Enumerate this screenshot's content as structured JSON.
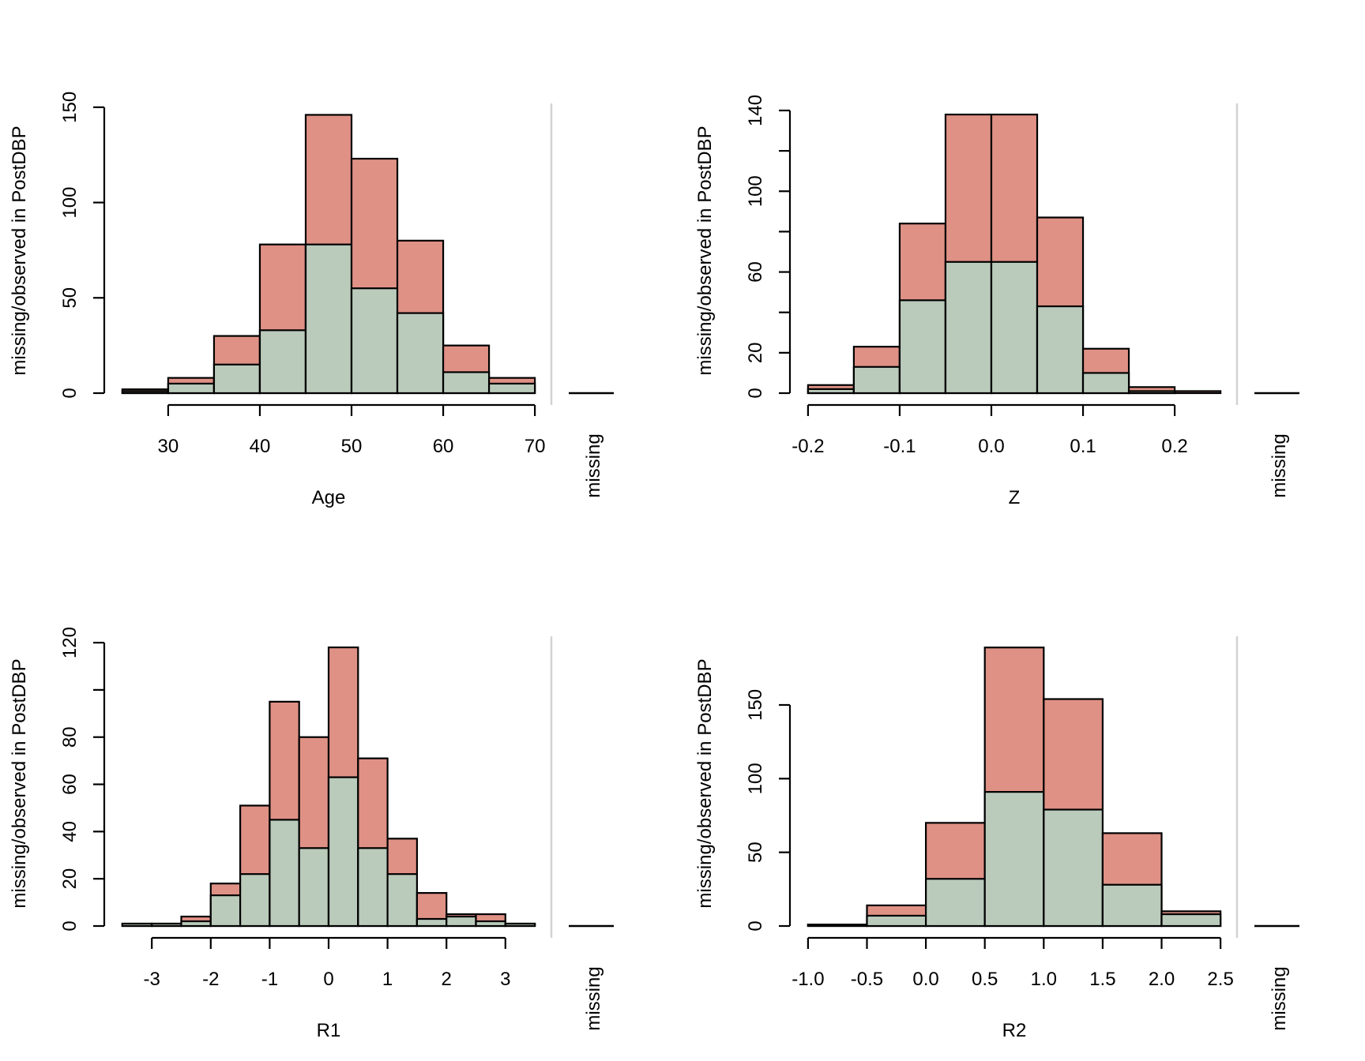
{
  "colors": {
    "observed": "#BACABB",
    "missing": "#DF9185",
    "separator": "#D3D3D3",
    "stroke": "#000000"
  },
  "chart_data": [
    {
      "type": "bar",
      "stacked": true,
      "title": "",
      "xlabel": "Age",
      "ylabel": "missing/observed in PostDBP",
      "bin_edges": [
        25,
        30,
        35,
        40,
        45,
        50,
        55,
        60,
        65,
        70
      ],
      "series": [
        {
          "name": "observed",
          "values": [
            1,
            5,
            15,
            33,
            78,
            55,
            42,
            11,
            5
          ]
        },
        {
          "name": "missing",
          "values": [
            1,
            3,
            15,
            45,
            68,
            68,
            38,
            14,
            3
          ]
        }
      ],
      "xticks": [
        30,
        40,
        50,
        60,
        70
      ],
      "xtick_labels": [
        "30",
        "40",
        "50",
        "60",
        "70"
      ],
      "yticks": [
        0,
        50,
        100,
        150
      ],
      "ytick_labels": [
        "0",
        "50",
        "100",
        "150"
      ],
      "ylim": [
        0,
        152
      ],
      "missing_label": "missing",
      "missing_count": 0
    },
    {
      "type": "bar",
      "stacked": true,
      "title": "",
      "xlabel": "Z",
      "ylabel": "missing/observed in PostDBP",
      "bin_edges": [
        -0.2,
        -0.15,
        -0.1,
        -0.05,
        0,
        0.05,
        0.1,
        0.15,
        0.2,
        0.25
      ],
      "series": [
        {
          "name": "observed",
          "values": [
            2,
            13,
            46,
            65,
            65,
            43,
            10,
            1,
            0
          ]
        },
        {
          "name": "missing",
          "values": [
            2,
            10,
            38,
            73,
            73,
            44,
            12,
            2,
            1
          ]
        }
      ],
      "xticks": [
        -0.2,
        -0.1,
        0,
        0.1,
        0.2
      ],
      "xtick_labels": [
        "-0.2",
        "-0.1",
        "0.0",
        "0.1",
        "0.2"
      ],
      "yticks": [
        0,
        20,
        40,
        60,
        80,
        100,
        120,
        140
      ],
      "ytick_labels": [
        "0",
        "20",
        "",
        "60",
        "",
        "100",
        "",
        "140"
      ],
      "ylim": [
        0,
        143.5
      ],
      "missing_label": "missing",
      "missing_count": 0
    },
    {
      "type": "bar",
      "stacked": true,
      "title": "",
      "xlabel": "R1",
      "ylabel": "missing/observed in PostDBP",
      "bin_edges": [
        -3.5,
        -3,
        -2.5,
        -2,
        -1.5,
        -1,
        -0.5,
        0,
        0.5,
        1,
        1.5,
        2,
        2.5,
        3,
        3.5
      ],
      "series": [
        {
          "name": "observed",
          "values": [
            1,
            1,
            2,
            13,
            22,
            45,
            33,
            63,
            33,
            22,
            3,
            4,
            2,
            1
          ]
        },
        {
          "name": "missing",
          "values": [
            0,
            0,
            2,
            5,
            29,
            50,
            47,
            55,
            38,
            15,
            11,
            1,
            3,
            0
          ]
        }
      ],
      "xticks": [
        -3,
        -2,
        -1,
        0,
        1,
        2,
        3
      ],
      "xtick_labels": [
        "-3",
        "-2",
        "-1",
        "0",
        "1",
        "2",
        "3"
      ],
      "yticks": [
        0,
        20,
        40,
        60,
        80,
        100,
        120
      ],
      "ytick_labels": [
        "0",
        "20",
        "40",
        "60",
        "80",
        "",
        "120"
      ],
      "ylim": [
        0,
        122.7
      ],
      "missing_label": "missing",
      "missing_count": 0
    },
    {
      "type": "bar",
      "stacked": true,
      "title": "",
      "xlabel": "R2",
      "ylabel": "missing/observed in PostDBP",
      "bin_edges": [
        -1,
        -0.5,
        0,
        0.5,
        1,
        1.5,
        2,
        2.5
      ],
      "series": [
        {
          "name": "observed",
          "values": [
            1,
            7,
            32,
            91,
            79,
            28,
            8
          ]
        },
        {
          "name": "missing",
          "values": [
            0,
            7,
            38,
            98,
            75,
            35,
            2
          ]
        }
      ],
      "xticks": [
        -1,
        -0.5,
        0,
        0.5,
        1,
        1.5,
        2,
        2.5
      ],
      "xtick_labels": [
        "-1.0",
        "-0.5",
        "0.0",
        "0.5",
        "1.0",
        "1.5",
        "2.0",
        "2.5"
      ],
      "yticks": [
        0,
        50,
        100,
        150
      ],
      "ytick_labels": [
        "0",
        "50",
        "100",
        "150"
      ],
      "ylim": [
        0,
        196.6
      ],
      "missing_label": "missing",
      "missing_count": 0
    }
  ]
}
